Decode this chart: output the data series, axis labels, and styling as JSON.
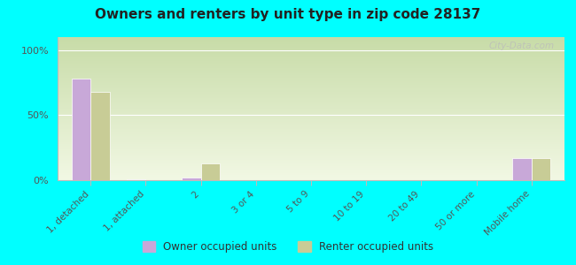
{
  "title": "Owners and renters by unit type in zip code 28137",
  "categories": [
    "1, detached",
    "1, attached",
    "2",
    "3 or 4",
    "5 to 9",
    "10 to 19",
    "20 to 49",
    "50 or more",
    "Mobile home"
  ],
  "owner_values": [
    78,
    1,
    2,
    0,
    0,
    0,
    0,
    0,
    17
  ],
  "renter_values": [
    68,
    0,
    13,
    0,
    0,
    0,
    0,
    0,
    17
  ],
  "owner_color": "#c8a8d8",
  "renter_color": "#c8cc96",
  "background_color": "#00ffff",
  "grad_top": "#c8dca8",
  "grad_bottom": "#f2f8e4",
  "yticks": [
    0,
    50,
    100
  ],
  "ylabels": [
    "0%",
    "50%",
    "100%"
  ],
  "ylim": [
    0,
    110
  ],
  "bar_width": 0.35,
  "legend_owner": "Owner occupied units",
  "legend_renter": "Renter occupied units",
  "watermark": "City-Data.com"
}
